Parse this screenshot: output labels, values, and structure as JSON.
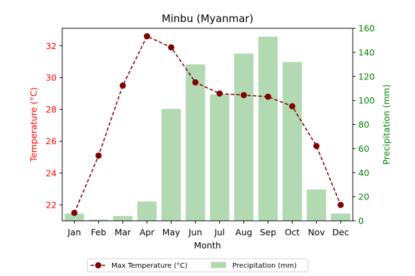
{
  "chart_data": {
    "type": "bar+line",
    "title": "Minbu (Myanmar)",
    "xlabel": "Month",
    "categories": [
      "Jan",
      "Feb",
      "Mar",
      "Apr",
      "May",
      "Jun",
      "Jul",
      "Aug",
      "Sep",
      "Oct",
      "Nov",
      "Dec"
    ],
    "left_axis": {
      "label": "Temperature (°C)",
      "color": "#ff0000",
      "ylim": [
        21,
        33.1
      ],
      "ticks": [
        22,
        24,
        26,
        28,
        30,
        32
      ]
    },
    "right_axis": {
      "label": "Precipitation (mm)",
      "color": "#008000",
      "ylim": [
        0,
        160
      ],
      "ticks": [
        0,
        20,
        40,
        60,
        80,
        100,
        120,
        140,
        160
      ]
    },
    "series": [
      {
        "name": "Max Temperature (°C)",
        "type": "line",
        "axis": "left",
        "color": "#800000",
        "style": "dashed",
        "marker": "circle",
        "values": [
          21.5,
          25.1,
          29.5,
          32.6,
          31.9,
          29.7,
          29.0,
          28.9,
          28.8,
          28.2,
          25.7,
          22.0
        ]
      },
      {
        "name": "Precipitation (mm)",
        "type": "bar",
        "axis": "right",
        "color": "#b2d9b2",
        "values": [
          6,
          1,
          4,
          16,
          93,
          130,
          105,
          139,
          153,
          132,
          26,
          6
        ]
      }
    ],
    "legend_position": "bottom-center"
  }
}
